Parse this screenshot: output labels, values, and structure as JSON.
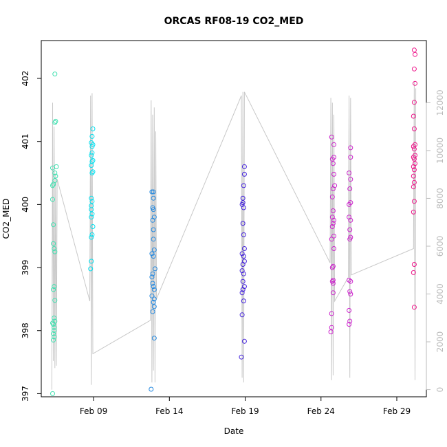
{
  "chart_data": {
    "type": "scatter",
    "title": "ORCAS RF08-19 CO2_MED",
    "xlabel": "Date",
    "ylabel": "CO2_MED",
    "x_ticks": [
      "Feb 09",
      "Feb 14",
      "Feb 19",
      "Feb 24",
      "Feb 29"
    ],
    "x_tick_days": [
      9,
      14,
      19,
      24,
      29
    ],
    "xlim_days": [
      5.55,
      30.95
    ],
    "ylim": [
      396.95,
      402.6
    ],
    "y_ticks": [
      397,
      398,
      399,
      400,
      401,
      402
    ],
    "y2_ticks": [
      0,
      2000,
      4000,
      6000,
      8000,
      10000,
      12000
    ],
    "y2lim": [
      -300,
      14600
    ],
    "grid": false,
    "series": [
      {
        "color": "#40e0b0",
        "points": [
          [
            6.3,
            397.0
          ],
          [
            6.35,
            397.85
          ],
          [
            6.4,
            397.9
          ],
          [
            6.35,
            397.95
          ],
          [
            6.4,
            398.0
          ],
          [
            6.4,
            398.05
          ],
          [
            6.35,
            398.1
          ],
          [
            6.3,
            398.12
          ],
          [
            6.45,
            398.15
          ],
          [
            6.4,
            398.2
          ],
          [
            6.45,
            398.48
          ],
          [
            6.35,
            398.65
          ],
          [
            6.4,
            398.7
          ],
          [
            6.45,
            399.25
          ],
          [
            6.4,
            399.3
          ],
          [
            6.35,
            399.38
          ],
          [
            6.35,
            399.68
          ],
          [
            6.3,
            400.08
          ],
          [
            6.3,
            400.3
          ],
          [
            6.35,
            400.32
          ],
          [
            6.45,
            400.38
          ],
          [
            6.5,
            400.45
          ],
          [
            6.45,
            400.5
          ],
          [
            6.3,
            400.58
          ],
          [
            6.55,
            400.6
          ],
          [
            6.45,
            401.3
          ],
          [
            6.5,
            401.32
          ],
          [
            6.45,
            402.07
          ]
        ]
      },
      {
        "color": "#00e0f0",
        "points": [
          [
            8.8,
            398.98
          ],
          [
            8.85,
            399.1
          ],
          [
            8.85,
            399.48
          ],
          [
            8.9,
            399.52
          ],
          [
            8.95,
            399.65
          ],
          [
            8.85,
            399.8
          ],
          [
            8.9,
            399.85
          ],
          [
            8.85,
            399.92
          ],
          [
            8.85,
            399.98
          ],
          [
            8.9,
            400.05
          ],
          [
            8.85,
            400.1
          ],
          [
            8.9,
            400.5
          ],
          [
            8.95,
            400.52
          ],
          [
            8.85,
            400.62
          ],
          [
            8.9,
            400.68
          ],
          [
            8.95,
            400.7
          ],
          [
            8.85,
            400.78
          ],
          [
            8.9,
            400.82
          ],
          [
            8.9,
            400.92
          ],
          [
            8.95,
            400.95
          ],
          [
            8.85,
            400.98
          ],
          [
            8.9,
            401.08
          ],
          [
            8.95,
            401.2
          ]
        ]
      },
      {
        "color": "#2288e0",
        "points": [
          [
            12.8,
            397.07
          ],
          [
            13.0,
            397.88
          ],
          [
            12.9,
            398.3
          ],
          [
            13.0,
            398.38
          ],
          [
            12.95,
            398.45
          ],
          [
            13.0,
            398.5
          ],
          [
            12.85,
            398.55
          ],
          [
            13.0,
            398.65
          ],
          [
            12.95,
            398.7
          ],
          [
            12.9,
            398.75
          ],
          [
            12.85,
            398.85
          ],
          [
            12.9,
            398.9
          ],
          [
            13.05,
            398.98
          ],
          [
            12.95,
            399.18
          ],
          [
            12.85,
            399.22
          ],
          [
            13.0,
            399.28
          ],
          [
            12.95,
            399.45
          ],
          [
            12.95,
            399.6
          ],
          [
            12.9,
            399.75
          ],
          [
            13.0,
            399.8
          ],
          [
            12.95,
            399.92
          ],
          [
            12.9,
            399.95
          ],
          [
            12.95,
            400.1
          ],
          [
            12.85,
            400.2
          ],
          [
            12.95,
            400.2
          ]
        ]
      },
      {
        "color": "#4422dd",
        "points": [
          [
            18.75,
            397.58
          ],
          [
            18.95,
            397.83
          ],
          [
            18.8,
            398.25
          ],
          [
            18.9,
            398.47
          ],
          [
            18.8,
            398.6
          ],
          [
            18.85,
            398.65
          ],
          [
            18.95,
            398.7
          ],
          [
            18.85,
            398.78
          ],
          [
            18.9,
            398.9
          ],
          [
            18.8,
            398.95
          ],
          [
            18.85,
            399.05
          ],
          [
            18.95,
            399.1
          ],
          [
            18.9,
            399.18
          ],
          [
            18.8,
            399.22
          ],
          [
            18.95,
            399.3
          ],
          [
            18.9,
            399.52
          ],
          [
            18.85,
            399.7
          ],
          [
            18.9,
            399.95
          ],
          [
            18.8,
            400.0
          ],
          [
            18.85,
            400.03
          ],
          [
            18.85,
            400.1
          ],
          [
            18.9,
            400.3
          ],
          [
            18.95,
            400.48
          ],
          [
            18.95,
            400.6
          ]
        ]
      },
      {
        "color": "#cc22cc",
        "points": [
          [
            24.65,
            397.98
          ],
          [
            24.7,
            398.05
          ],
          [
            24.7,
            398.27
          ],
          [
            24.8,
            398.6
          ],
          [
            24.8,
            398.75
          ],
          [
            24.75,
            398.78
          ],
          [
            24.8,
            398.8
          ],
          [
            24.75,
            399.0
          ],
          [
            24.8,
            399.02
          ],
          [
            24.85,
            399.3
          ],
          [
            24.7,
            399.45
          ],
          [
            24.85,
            399.5
          ],
          [
            24.75,
            399.65
          ],
          [
            24.8,
            399.7
          ],
          [
            24.85,
            399.75
          ],
          [
            24.75,
            399.8
          ],
          [
            24.8,
            399.9
          ],
          [
            24.75,
            400.12
          ],
          [
            24.8,
            400.25
          ],
          [
            24.9,
            400.3
          ],
          [
            24.85,
            400.48
          ],
          [
            24.8,
            400.65
          ],
          [
            24.75,
            400.72
          ],
          [
            24.85,
            400.75
          ],
          [
            24.85,
            400.95
          ],
          [
            24.7,
            401.07
          ],
          [
            25.85,
            398.1
          ],
          [
            25.9,
            398.15
          ],
          [
            25.85,
            398.32
          ],
          [
            25.95,
            398.58
          ],
          [
            25.9,
            398.62
          ],
          [
            25.95,
            398.78
          ],
          [
            25.85,
            398.8
          ],
          [
            25.9,
            399.45
          ],
          [
            25.95,
            399.48
          ],
          [
            25.9,
            399.6
          ],
          [
            25.95,
            399.75
          ],
          [
            25.85,
            399.8
          ],
          [
            25.85,
            400.0
          ],
          [
            25.95,
            400.03
          ],
          [
            25.9,
            400.25
          ],
          [
            25.95,
            400.4
          ],
          [
            25.85,
            400.5
          ],
          [
            25.95,
            400.75
          ],
          [
            25.95,
            400.9
          ]
        ]
      },
      {
        "color": "#ee1188",
        "points": [
          [
            30.15,
            398.37
          ],
          [
            30.1,
            398.92
          ],
          [
            30.15,
            399.05
          ],
          [
            30.1,
            399.88
          ],
          [
            30.15,
            400.05
          ],
          [
            30.1,
            400.28
          ],
          [
            30.15,
            400.35
          ],
          [
            30.1,
            400.45
          ],
          [
            30.15,
            400.55
          ],
          [
            30.1,
            400.6
          ],
          [
            30.2,
            400.65
          ],
          [
            30.15,
            400.72
          ],
          [
            30.1,
            400.75
          ],
          [
            30.2,
            400.78
          ],
          [
            30.15,
            400.88
          ],
          [
            30.1,
            400.92
          ],
          [
            30.2,
            400.95
          ],
          [
            30.15,
            401.2
          ],
          [
            30.1,
            401.4
          ],
          [
            30.15,
            401.62
          ],
          [
            30.2,
            401.92
          ],
          [
            30.15,
            402.15
          ],
          [
            30.2,
            402.38
          ],
          [
            30.15,
            402.45
          ]
        ]
      }
    ],
    "secondary_series": {
      "color": "#c8c8c8",
      "points": [
        [
          6.25,
          0
        ],
        [
          6.3,
          12000
        ],
        [
          6.35,
          1200
        ],
        [
          6.4,
          11000
        ],
        [
          6.45,
          900
        ],
        [
          6.5,
          9000
        ],
        [
          6.55,
          1000
        ],
        [
          6.6,
          8800
        ],
        [
          8.75,
          3700
        ],
        [
          8.8,
          12300
        ],
        [
          8.85,
          200
        ],
        [
          8.9,
          12400
        ],
        [
          8.95,
          1500
        ],
        [
          12.75,
          2900
        ],
        [
          12.8,
          12100
        ],
        [
          12.85,
          300
        ],
        [
          12.9,
          11500
        ],
        [
          12.95,
          800
        ],
        [
          13.0,
          11800
        ],
        [
          13.05,
          300
        ],
        [
          13.1,
          10800
        ],
        [
          13.15,
          3800
        ],
        [
          18.75,
          12300
        ],
        [
          18.8,
          500
        ],
        [
          18.85,
          12450
        ],
        [
          18.9,
          300
        ],
        [
          18.95,
          12450
        ],
        [
          24.6,
          5300
        ],
        [
          24.65,
          12200
        ],
        [
          24.7,
          400
        ],
        [
          24.75,
          12000
        ],
        [
          24.8,
          600
        ],
        [
          24.85,
          11500
        ],
        [
          24.9,
          3700
        ],
        [
          25.8,
          4700
        ],
        [
          25.85,
          12300
        ],
        [
          25.9,
          500
        ],
        [
          25.95,
          12200
        ],
        [
          26.0,
          4800
        ],
        [
          30.1,
          5900
        ],
        [
          30.15,
          12900
        ],
        [
          30.2,
          400
        ],
        [
          30.25,
          12600
        ]
      ]
    }
  }
}
